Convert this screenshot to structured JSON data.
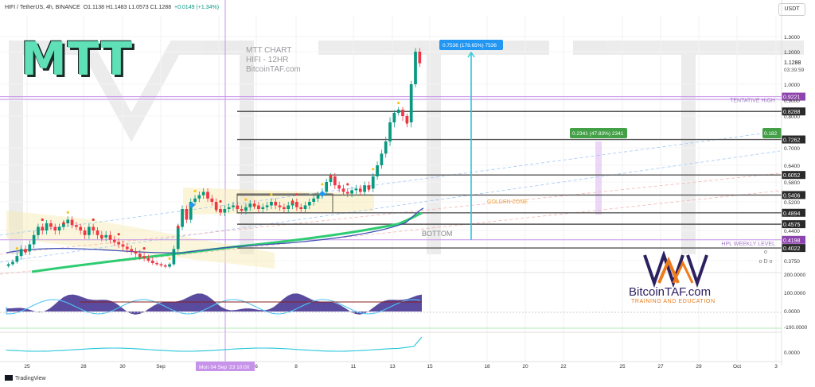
{
  "header": {
    "symbol": "HIFI / TetherUS, 4h, BINANCE",
    "ohlc": "O1.1138  H1.1483  L1.0573  C1.1288",
    "change": "+0.0149 (+1.34%)"
  },
  "currency_button": "USDT",
  "logo_text": "MTT",
  "chart_note": "MTT CHART\nHIFI - 12HR\nBitcoinTAF.com",
  "brand": {
    "name": "BitcoinTAF.com",
    "tagline": "TRAINING AND EDUCATION"
  },
  "footer": "TradingView",
  "colors": {
    "bull": "#089981",
    "bear": "#f23645",
    "marker_line": "#c792ea",
    "accent_blue": "#2196f3",
    "ema": "#2ecc71"
  },
  "chart_data": {
    "type": "candlestick",
    "symbol": "HIFI / TetherUS",
    "timeframe": "4h",
    "x_tick_labels": [
      "25",
      "28",
      "30",
      "Sep",
      "4",
      "6",
      "8",
      "11",
      "13",
      "15",
      "18",
      "20",
      "22",
      "25",
      "27",
      "29",
      "Oct",
      "3"
    ],
    "y_tick_labels": [
      "1.3000",
      "1.2000",
      "1.0000",
      "0.9000",
      "0.8000",
      "0.7000",
      "0.6400",
      "0.5800",
      "0.5200",
      "0.4400",
      "0.3750"
    ],
    "current_price": "1.1288",
    "countdown": "03:39:59",
    "close_series": [
      0.36,
      0.37,
      0.385,
      0.4,
      0.395,
      0.41,
      0.43,
      0.45,
      0.44,
      0.46,
      0.45,
      0.44,
      0.45,
      0.46,
      0.47,
      0.455,
      0.45,
      0.44,
      0.43,
      0.45,
      0.44,
      0.43,
      0.425,
      0.43,
      0.42,
      0.415,
      0.41,
      0.405,
      0.4,
      0.395,
      0.39,
      0.385,
      0.38,
      0.375,
      0.365,
      0.36,
      0.355,
      0.35,
      0.36,
      0.4,
      0.45,
      0.5,
      0.47,
      0.52,
      0.53,
      0.54,
      0.55,
      0.53,
      0.52,
      0.5,
      0.49,
      0.5,
      0.505,
      0.51,
      0.5,
      0.495,
      0.505,
      0.515,
      0.51,
      0.5,
      0.505,
      0.51,
      0.52,
      0.51,
      0.505,
      0.5,
      0.51,
      0.52,
      0.505,
      0.5,
      0.51,
      0.52,
      0.53,
      0.54,
      0.55,
      0.58,
      0.6,
      0.57,
      0.56,
      0.55,
      0.545,
      0.555,
      0.56,
      0.55,
      0.57,
      0.56,
      0.6,
      0.64,
      0.68,
      0.72,
      0.78,
      0.82,
      0.84,
      0.8,
      0.78,
      1.0,
      1.2,
      1.1288
    ],
    "levels": [
      {
        "price": "0.9221",
        "label": "TENTATIVE HIGH"
      },
      {
        "price": "0.8288",
        "label": ""
      },
      {
        "price": "0.7262",
        "label": ""
      },
      {
        "price": "0.6052",
        "label": ""
      },
      {
        "price": "0.5406",
        "label": ""
      },
      {
        "price": "0.4894",
        "label": "GOLDEN ZONE"
      },
      {
        "price": "0.4575",
        "label": ""
      },
      {
        "price": "0.4198",
        "label": "HPL WEEKLY LEVEL"
      },
      {
        "price": "0.4022",
        "label": ""
      }
    ],
    "bottom_label": "BOTTOM",
    "measure_1": "0.7536 (178.65%) 7536",
    "measure_2": "0.2341 (47.83%) 2341",
    "measure_2_edge": "0.182",
    "crosshair_label": "Mon 04 Sep '23  10:00",
    "osc1_tick_labels": [
      "200.0000",
      "100.0000",
      "0.0000",
      "-100.0000"
    ],
    "osc2_tick_labels": [
      "0.0000"
    ],
    "side_marks": [
      "o",
      "o D o"
    ]
  }
}
